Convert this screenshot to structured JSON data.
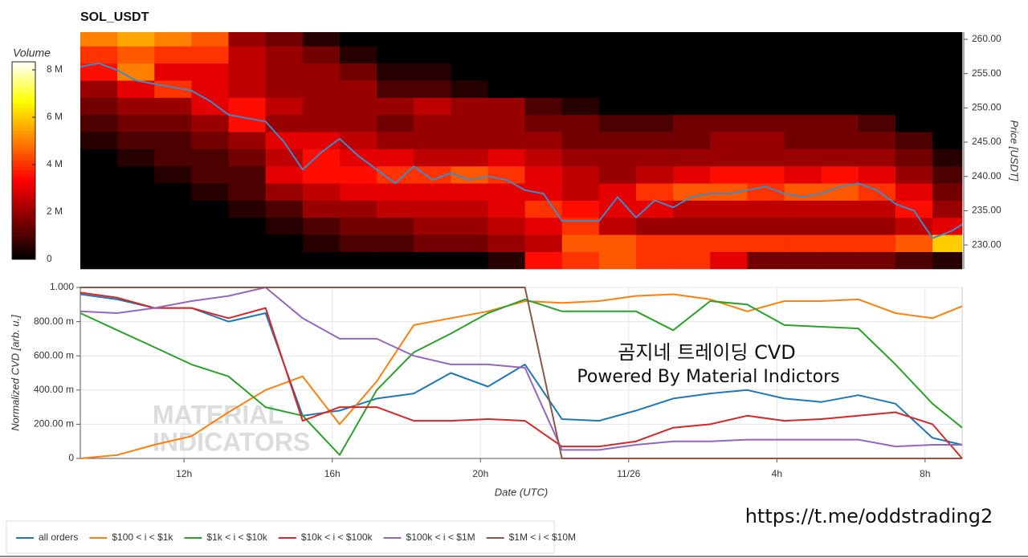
{
  "chart_data": [
    {
      "type": "heatmap",
      "title": "SOL_USDT",
      "x_edges": [
        9.2,
        10.2,
        11.2,
        12.2,
        13.2,
        14.2,
        15.2,
        16.2,
        17.2,
        18.2,
        19.2,
        20.2,
        21.2,
        22.2,
        23.2,
        24.2,
        25.2,
        26.2,
        27.2,
        28.2,
        29.2,
        30.2,
        31.2,
        32.2,
        33.0
      ],
      "y_edges": [
        226.5,
        229,
        231.5,
        234,
        236.5,
        239,
        241.5,
        244,
        246.5,
        249,
        251.5,
        254,
        256.5,
        259,
        261.05
      ],
      "z": [
        [
          0,
          0,
          0,
          0,
          0,
          0,
          0,
          0,
          0,
          0,
          0,
          0.5,
          3.5,
          4,
          4.5,
          4,
          4,
          3,
          1.5,
          1.5,
          1.5,
          1.5,
          1,
          0.5
        ],
        [
          0,
          0,
          0,
          0,
          0,
          0,
          0.5,
          1,
          1,
          1.5,
          1.5,
          2,
          2.5,
          4.5,
          4.5,
          4,
          4,
          4,
          4,
          4,
          4,
          4,
          4.5,
          6
        ],
        [
          0,
          0,
          0,
          0,
          0,
          0.5,
          1,
          1.5,
          1.5,
          2,
          2,
          2.5,
          3,
          4,
          2.5,
          2,
          2,
          2,
          2,
          2,
          2,
          2,
          2.5,
          3
        ],
        [
          0,
          0,
          0,
          0,
          0.5,
          1,
          2,
          2,
          2.5,
          2.5,
          2.5,
          3,
          4,
          3.5,
          3,
          3,
          2.5,
          2.5,
          2.5,
          2.5,
          2.5,
          2.5,
          3.5,
          2
        ],
        [
          0,
          0,
          0,
          0.5,
          1,
          2,
          2.5,
          3,
          3,
          3,
          3,
          3,
          3,
          2.5,
          3,
          4,
          4.5,
          4.5,
          4,
          4.5,
          4.5,
          4,
          3,
          1.5
        ],
        [
          0,
          0,
          0.5,
          1,
          1,
          3,
          3.5,
          3.5,
          4,
          4,
          4.5,
          4,
          3,
          2.5,
          2,
          2.5,
          3,
          3.5,
          3.5,
          3,
          3.5,
          3,
          2,
          1
        ],
        [
          0,
          0.5,
          1,
          1,
          1.5,
          2.5,
          3.5,
          3,
          3,
          2.5,
          2.5,
          3,
          2.5,
          2,
          2,
          2,
          2,
          2,
          2,
          2,
          2,
          2,
          1.5,
          0.5
        ],
        [
          0.5,
          1,
          1,
          1.5,
          2,
          3,
          3,
          2.5,
          2,
          2,
          2,
          2,
          2,
          1.5,
          1.5,
          1.5,
          1.5,
          2,
          2,
          1.5,
          1.5,
          1.5,
          1,
          0
        ],
        [
          1,
          1.5,
          1.5,
          2,
          3.5,
          2,
          2,
          2,
          1.5,
          2,
          2,
          2,
          1.5,
          1.5,
          1,
          1,
          1.5,
          1.5,
          1.5,
          1.5,
          1.5,
          1,
          0,
          0
        ],
        [
          1.5,
          2,
          2,
          3,
          3.5,
          2.5,
          2,
          2,
          2,
          2.5,
          2,
          2,
          1,
          0.5,
          0,
          0,
          0,
          0,
          0,
          0,
          0,
          0,
          0,
          0
        ],
        [
          2,
          3,
          4,
          3,
          2.5,
          2,
          2,
          2,
          1,
          1,
          0.5,
          0,
          0,
          0,
          0,
          0,
          0,
          0,
          0,
          0,
          0,
          0,
          0,
          0
        ],
        [
          3.5,
          5,
          3,
          3,
          2.5,
          2,
          2,
          1.5,
          0.5,
          0.5,
          0,
          0,
          0,
          0,
          0,
          0,
          0,
          0,
          0,
          0,
          0,
          0,
          0,
          0
        ],
        [
          4,
          4.5,
          4,
          4,
          2.5,
          2,
          1.5,
          0.5,
          0,
          0,
          0,
          0,
          0,
          0,
          0,
          0,
          0,
          0,
          0,
          0,
          0,
          0,
          0,
          0
        ],
        [
          5,
          5.5,
          5,
          4.5,
          2,
          1.5,
          0.5,
          0,
          0,
          0,
          0,
          0,
          0,
          0,
          0,
          0,
          0,
          0,
          0,
          0,
          0,
          0,
          0,
          0
        ]
      ],
      "clim": [
        0,
        8.34
      ],
      "colorbar_title": "Volume",
      "colorbar_ticks": [
        0,
        {
          "value": 2,
          "label": "2 M"
        },
        {
          "value": 4,
          "label": "4 M"
        },
        {
          "value": 6,
          "label": "6 M"
        },
        {
          "value": 8,
          "label": "8 M"
        }
      ],
      "x": [
        9.2,
        9.7,
        10.2,
        10.7,
        11.2,
        11.7,
        12.2,
        12.7,
        13.2,
        13.7,
        14.2,
        14.7,
        15.2,
        15.7,
        16.2,
        16.7,
        17.2,
        17.7,
        18.2,
        18.7,
        19.2,
        19.7,
        20.2,
        20.7,
        21.2,
        21.7,
        22.2,
        22.7,
        23.2,
        23.7,
        24.2,
        24.7,
        25.2,
        25.7,
        26.2,
        26.7,
        27.2,
        27.7,
        28.2,
        28.7,
        29.2,
        29.7,
        30.2,
        30.7,
        31.2,
        31.7,
        32.2,
        32.7,
        33.0
      ],
      "series": [
        {
          "color": "#3d8bc7",
          "values": [
            256,
            256.5,
            255.5,
            254,
            253.5,
            253,
            252.5,
            251,
            249,
            248.5,
            248,
            245,
            241,
            243.5,
            245.5,
            243,
            241,
            239,
            241.5,
            239.5,
            240.5,
            239.5,
            240,
            239.5,
            238,
            237.5,
            233.5,
            233.5,
            233.5,
            237,
            234,
            236.5,
            235.5,
            237,
            237.5,
            237.5,
            238,
            238.5,
            237.5,
            237,
            237.5,
            238.5,
            239,
            238,
            236,
            235,
            231,
            232,
            233
          ]
        }
      ],
      "xlim": [
        9.2,
        33.0
      ],
      "ylim": [
        226.5,
        261.05
      ],
      "yticks": [
        {
          "value": 230,
          "label": "230.00"
        },
        {
          "value": 235,
          "label": "235.00"
        },
        {
          "value": 240,
          "label": "240.00"
        },
        {
          "value": 245,
          "label": "245.00"
        },
        {
          "value": 250,
          "label": "250.00"
        },
        {
          "value": 255,
          "label": "255.00"
        },
        {
          "value": 260,
          "label": "260.00"
        }
      ],
      "ylabel": "Price [USDT]"
    },
    {
      "type": "line",
      "x": [
        9.2,
        10.2,
        11.2,
        12.2,
        13.2,
        14.2,
        15.2,
        16.2,
        17.2,
        18.2,
        19.2,
        20.2,
        21.2,
        22.2,
        23.2,
        24.2,
        25.2,
        26.2,
        27.2,
        28.2,
        29.2,
        30.2,
        31.2,
        32.2,
        33.0
      ],
      "series": [
        {
          "name": "all orders",
          "color": "#1f77b4",
          "values": [
            0.96,
            0.93,
            0.88,
            0.88,
            0.8,
            0.85,
            0.25,
            0.28,
            0.35,
            0.38,
            0.5,
            0.42,
            0.55,
            0.23,
            0.22,
            0.28,
            0.35,
            0.38,
            0.4,
            0.35,
            0.33,
            0.37,
            0.32,
            0.12,
            0.08
          ]
        },
        {
          "name": "$100 < i < $1k",
          "color": "#ff7f0e",
          "values": [
            0.0,
            0.02,
            0.08,
            0.13,
            0.27,
            0.4,
            0.48,
            0.2,
            0.45,
            0.78,
            0.82,
            0.86,
            0.92,
            0.91,
            0.92,
            0.95,
            0.96,
            0.93,
            0.86,
            0.92,
            0.92,
            0.93,
            0.85,
            0.82,
            0.89
          ]
        },
        {
          "name": "$1k < i < $10k",
          "color": "#2ca02c",
          "values": [
            0.85,
            0.75,
            0.65,
            0.55,
            0.48,
            0.3,
            0.25,
            0.02,
            0.4,
            0.62,
            0.73,
            0.85,
            0.93,
            0.86,
            0.86,
            0.86,
            0.75,
            0.92,
            0.9,
            0.78,
            0.77,
            0.76,
            0.55,
            0.32,
            0.18
          ]
        },
        {
          "name": "$10k < i < $100k",
          "color": "#d62728",
          "values": [
            0.97,
            0.94,
            0.88,
            0.88,
            0.82,
            0.88,
            0.22,
            0.3,
            0.3,
            0.22,
            0.22,
            0.23,
            0.22,
            0.07,
            0.07,
            0.1,
            0.18,
            0.2,
            0.25,
            0.22,
            0.23,
            0.25,
            0.27,
            0.2,
            0.0
          ]
        },
        {
          "name": "$100k < i < $1M",
          "color": "#9467bd",
          "values": [
            0.86,
            0.85,
            0.88,
            0.92,
            0.95,
            1.0,
            0.82,
            0.7,
            0.7,
            0.6,
            0.55,
            0.55,
            0.53,
            0.05,
            0.05,
            0.08,
            0.1,
            0.1,
            0.11,
            0.11,
            0.11,
            0.11,
            0.07,
            0.08,
            0.08
          ]
        },
        {
          "name": "$1M < i < $10M",
          "color": "#8c564b",
          "values": [
            1.0,
            1.0,
            1.0,
            1.0,
            1.0,
            1.0,
            1.0,
            1.0,
            1.0,
            1.0,
            1.0,
            1.0,
            1.0,
            0.0,
            0.0,
            0.0,
            0.0,
            0.0,
            0.0,
            0.0,
            0.0,
            0.0,
            0.0,
            0.0,
            0.0
          ]
        }
      ],
      "xlim": [
        9.2,
        33.0
      ],
      "xticks": [
        {
          "value": 12,
          "label": "12h"
        },
        {
          "value": 16,
          "label": "16h"
        },
        {
          "value": 20,
          "label": "20h"
        },
        {
          "value": 24,
          "label": "11/26"
        },
        {
          "value": 28,
          "label": "4h"
        },
        {
          "value": 32,
          "label": "8h"
        }
      ],
      "ylim": [
        0,
        1.0
      ],
      "yticks": [
        0,
        {
          "value": 0.2,
          "label": "200.00 m"
        },
        {
          "value": 0.4,
          "label": "400.00 m"
        },
        {
          "value": 0.6,
          "label": "600.00 m"
        },
        {
          "value": 0.8,
          "label": "800.00 m"
        },
        {
          "value": 1.0,
          "label": "1.000"
        }
      ],
      "xlabel": "Date (UTC)",
      "ylabel": "Normalized CVD [arb. u.]",
      "grid": true,
      "legend": "bottom",
      "watermark": [
        "MATERIAL",
        "INDICATORS"
      ],
      "annotations": [
        "곰지네 트레이딩 CVD",
        "Powered By Material Indictors",
        "https://t.me/oddstrading2"
      ]
    }
  ]
}
